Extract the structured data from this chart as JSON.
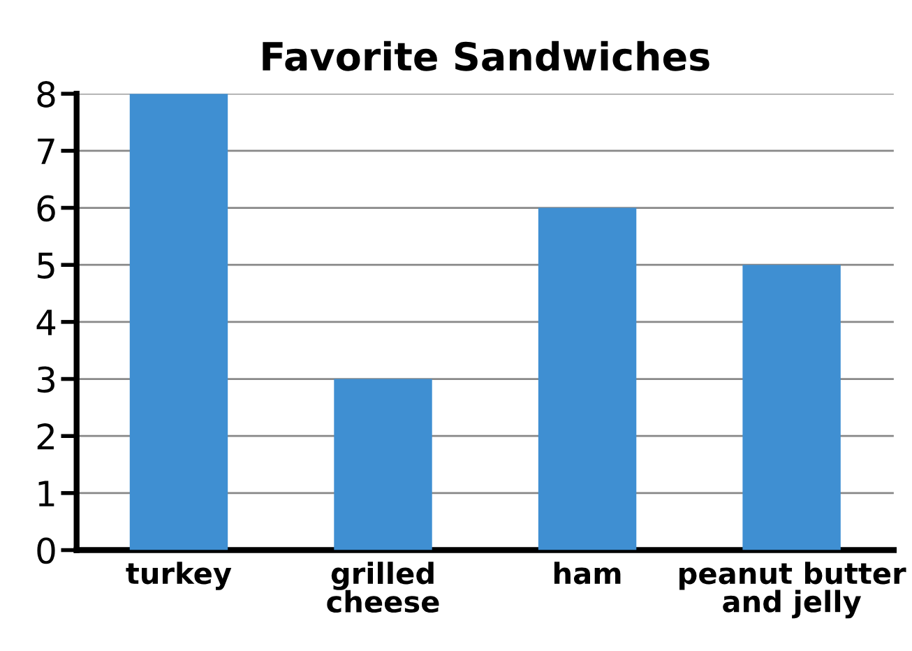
{
  "chart_data": {
    "type": "bar",
    "title": "Favorite Sandwiches",
    "categories": [
      "turkey",
      "grilled cheese",
      "ham",
      "peanut butter and jelly"
    ],
    "values": [
      8,
      3,
      6,
      5
    ],
    "color": "#3f8fd2",
    "ylim": [
      0,
      8
    ],
    "yticks": [
      0,
      1,
      2,
      3,
      4,
      5,
      6,
      7,
      8
    ],
    "grid": "y"
  }
}
